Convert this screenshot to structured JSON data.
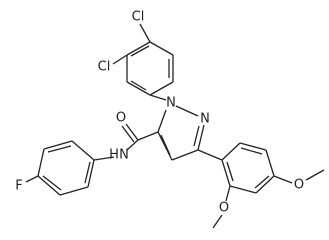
{
  "atoms": {
    "cl_top": "Cl",
    "cl_left": "Cl",
    "n1": "N",
    "n2": "N",
    "o_carbonyl": "O",
    "h_amide": "H",
    "n_amide": "N",
    "f": "F",
    "o_ortho": "O",
    "o_para": "O"
  }
}
